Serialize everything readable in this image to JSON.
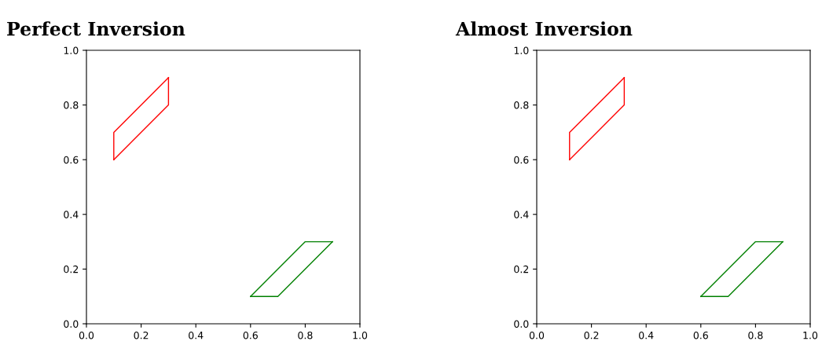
{
  "chart_data": [
    {
      "type": "line",
      "title": "Perfect Inversion",
      "xlim": [
        0,
        1
      ],
      "ylim": [
        0,
        1
      ],
      "xticks": [
        {
          "value": 0,
          "label": "0.0"
        },
        {
          "value": 0.2,
          "label": "0.2"
        },
        {
          "value": 0.4,
          "label": "0.4"
        },
        {
          "value": 0.6,
          "label": "0.6"
        },
        {
          "value": 0.8,
          "label": "0.8"
        },
        {
          "value": 1,
          "label": "1.0"
        }
      ],
      "yticks": [
        {
          "value": 0,
          "label": "0.0"
        },
        {
          "value": 0.2,
          "label": "0.2"
        },
        {
          "value": 0.4,
          "label": "0.4"
        },
        {
          "value": 0.6,
          "label": "0.6"
        },
        {
          "value": 0.8,
          "label": "0.8"
        },
        {
          "value": 1,
          "label": "1.0"
        }
      ],
      "grid": false,
      "legend": false,
      "series": [
        {
          "color": "#ff0000",
          "x": [
            0.1,
            0.1,
            0.3
          ],
          "values": [
            0.6,
            0.7,
            0.9
          ]
        },
        {
          "color": "#ff0000",
          "x": [
            0.1,
            0.3,
            0.3
          ],
          "values": [
            0.6,
            0.8,
            0.9
          ]
        },
        {
          "color": "#008000",
          "x": [
            0.6,
            0.8,
            0.9
          ],
          "values": [
            0.1,
            0.3,
            0.3
          ]
        },
        {
          "color": "#008000",
          "x": [
            0.6,
            0.7,
            0.9
          ],
          "values": [
            0.1,
            0.1,
            0.3
          ]
        }
      ]
    },
    {
      "type": "line",
      "title": "Almost Inversion",
      "xlim": [
        0,
        1
      ],
      "ylim": [
        0,
        1
      ],
      "xticks": [
        {
          "value": 0,
          "label": "0.0"
        },
        {
          "value": 0.2,
          "label": "0.2"
        },
        {
          "value": 0.4,
          "label": "0.4"
        },
        {
          "value": 0.6,
          "label": "0.6"
        },
        {
          "value": 0.8,
          "label": "0.8"
        },
        {
          "value": 1,
          "label": "1.0"
        }
      ],
      "yticks": [
        {
          "value": 0,
          "label": "0.0"
        },
        {
          "value": 0.2,
          "label": "0.2"
        },
        {
          "value": 0.4,
          "label": "0.4"
        },
        {
          "value": 0.6,
          "label": "0.6"
        },
        {
          "value": 0.8,
          "label": "0.8"
        },
        {
          "value": 1,
          "label": "1.0"
        }
      ],
      "grid": false,
      "legend": false,
      "series": [
        {
          "color": "#ff0000",
          "x": [
            0.12,
            0.12,
            0.32
          ],
          "values": [
            0.6,
            0.7,
            0.9
          ]
        },
        {
          "color": "#ff0000",
          "x": [
            0.12,
            0.32,
            0.32
          ],
          "values": [
            0.6,
            0.8,
            0.9
          ]
        },
        {
          "color": "#008000",
          "x": [
            0.6,
            0.8,
            0.9
          ],
          "values": [
            0.1,
            0.3,
            0.3
          ]
        },
        {
          "color": "#008000",
          "x": [
            0.6,
            0.7,
            0.9
          ],
          "values": [
            0.1,
            0.1,
            0.3
          ]
        }
      ]
    }
  ]
}
